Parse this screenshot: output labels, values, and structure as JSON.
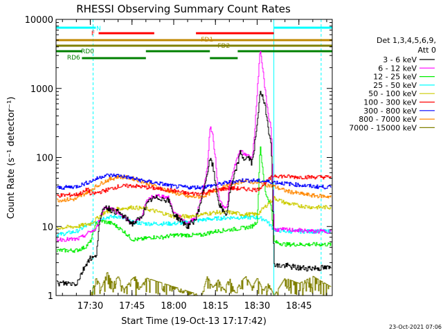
{
  "chart_data": {
    "type": "line",
    "title": "RHESSI Observing Summary Count Rates",
    "xlabel": "Start Time (19-Oct-13 17:17:42)",
    "ylabel": "Count Rate (s⁻¹ detector⁻¹)",
    "y_scale": "log",
    "ylim": [
      1,
      10000
    ],
    "xlim": [
      "17:17:42",
      "18:57:00"
    ],
    "x_ticks": [
      "17:30",
      "17:45",
      "18:00",
      "18:15",
      "18:30",
      "18:45"
    ],
    "y_ticks": [
      "1",
      "10",
      "100",
      "1000",
      "10000"
    ],
    "legend_header": [
      "Det 1,3,4,5,6,9,",
      "Att 0"
    ],
    "timestamp": "23-Oct-2021 07:06",
    "series": [
      {
        "name": "3 - 6 keV",
        "color": "#000000",
        "x": [
          "17:17:42",
          "17:25",
          "17:27",
          "17:29",
          "17:30",
          "17:31",
          "17:32",
          "17:33",
          "17:35",
          "17:38",
          "17:40",
          "17:45",
          "17:48",
          "17:50",
          "17:52",
          "17:55",
          "17:58",
          "18:00",
          "18:05",
          "18:08",
          "18:10",
          "18:12",
          "18:13",
          "18:14",
          "18:15",
          "18:16",
          "18:17",
          "18:19",
          "18:20",
          "18:22",
          "18:24",
          "18:25",
          "18:27",
          "18:28",
          "18:29",
          "18:30",
          "18:31",
          "18:32",
          "18:33",
          "18:34",
          "18:35",
          "18:36",
          "18:37",
          "18:40",
          "18:45",
          "18:50",
          "18:57"
        ],
        "values": [
          1.5,
          1.5,
          2.2,
          3.2,
          3.5,
          3.5,
          3.6,
          10,
          20,
          17,
          16,
          11,
          13,
          20,
          25,
          26,
          24,
          15,
          10,
          13,
          26,
          60,
          95,
          75,
          40,
          23,
          18,
          15,
          30,
          60,
          120,
          95,
          100,
          80,
          150,
          300,
          1000,
          700,
          500,
          250,
          170,
          3,
          2.7,
          2.7,
          2.5,
          2.5,
          2.5
        ]
      },
      {
        "name": "6 - 12 keV",
        "color": "#ff00ff",
        "x": [
          "17:17:42",
          "17:25",
          "17:27",
          "17:30",
          "17:31",
          "17:32",
          "17:33",
          "17:35",
          "17:38",
          "17:40",
          "17:45",
          "17:48",
          "17:50",
          "17:52",
          "17:55",
          "17:58",
          "18:00",
          "18:05",
          "18:08",
          "18:10",
          "18:12",
          "18:13",
          "18:14",
          "18:15",
          "18:16",
          "18:17",
          "18:19",
          "18:20",
          "18:22",
          "18:24",
          "18:25",
          "18:27",
          "18:28",
          "18:29",
          "18:30",
          "18:31",
          "18:32",
          "18:33",
          "18:34",
          "18:35",
          "18:36",
          "18:40",
          "18:45",
          "18:50",
          "18:57"
        ],
        "values": [
          6.5,
          6.5,
          7,
          8.5,
          8.7,
          9,
          12,
          19,
          18,
          16,
          11,
          13,
          22,
          27,
          28,
          26,
          16,
          11,
          14,
          28,
          70,
          290,
          200,
          90,
          28,
          22,
          18,
          38,
          80,
          130,
          110,
          110,
          90,
          220,
          1000,
          3500,
          1800,
          800,
          400,
          260,
          9,
          9,
          8.8,
          8.5,
          8.5
        ]
      },
      {
        "name": "12 - 25 keV",
        "color": "#00ee00",
        "x": [
          "17:17:42",
          "17:25",
          "17:28",
          "17:30",
          "17:32",
          "17:34",
          "17:38",
          "17:42",
          "17:45",
          "17:48",
          "17:52",
          "17:56",
          "18:00",
          "18:05",
          "18:10",
          "18:12",
          "18:15",
          "18:20",
          "18:25",
          "18:28",
          "18:30",
          "18:31",
          "18:32",
          "18:33",
          "18:35",
          "18:36",
          "18:40",
          "18:45",
          "18:50",
          "18:57"
        ],
        "values": [
          4.5,
          4.5,
          5,
          6,
          11,
          12,
          11,
          8.5,
          6.5,
          6.5,
          7,
          7,
          7.5,
          7.5,
          7.5,
          8,
          8.5,
          9,
          9.5,
          10,
          12,
          160,
          60,
          30,
          20,
          6,
          5.5,
          5.5,
          5.5,
          5.5
        ]
      },
      {
        "name": "25 - 50 keV",
        "color": "#00ffff",
        "x": [
          "17:17:42",
          "17:25",
          "17:30",
          "17:35",
          "17:40",
          "17:45",
          "17:50",
          "17:55",
          "18:00",
          "18:05",
          "18:10",
          "18:15",
          "18:20",
          "18:25",
          "18:30",
          "18:33",
          "18:36",
          "18:40",
          "18:45",
          "18:50",
          "18:57"
        ],
        "values": [
          7.5,
          8.5,
          11,
          13.5,
          14,
          11.5,
          11,
          11,
          11,
          11.5,
          12.5,
          13,
          13.5,
          13.5,
          13.5,
          12.5,
          9,
          8.5,
          8.5,
          8.5,
          8.5
        ]
      },
      {
        "name": "50 - 100 keV",
        "color": "#cccc00",
        "x": [
          "17:17:42",
          "17:25",
          "17:30",
          "17:35",
          "17:40",
          "17:45",
          "17:50",
          "17:55",
          "18:00",
          "18:05",
          "18:10",
          "18:15",
          "18:20",
          "18:25",
          "18:30",
          "18:36",
          "18:40",
          "18:45",
          "18:50",
          "18:57"
        ],
        "values": [
          9.5,
          10,
          11,
          16,
          18,
          19,
          18,
          16,
          14,
          14,
          15,
          16,
          16,
          15,
          15,
          26,
          22,
          20,
          19,
          19
        ]
      },
      {
        "name": "100 - 300 keV",
        "color": "#ff0000",
        "x": [
          "17:17:42",
          "17:25",
          "17:28",
          "17:29",
          "17:30",
          "17:35",
          "17:40",
          "17:45",
          "17:50",
          "17:55",
          "18:00",
          "18:05",
          "18:10",
          "18:15",
          "18:20",
          "18:25",
          "18:30",
          "18:36",
          "18:40",
          "18:45",
          "18:50",
          "18:57"
        ],
        "values": [
          28,
          29,
          32,
          36,
          29,
          33,
          38,
          39,
          37,
          35,
          33,
          30,
          30,
          34,
          36,
          35,
          34,
          55,
          53,
          52,
          52,
          52
        ]
      },
      {
        "name": "300 - 800 keV",
        "color": "#0000ff",
        "x": [
          "17:17:42",
          "17:25",
          "17:30",
          "17:35",
          "17:40",
          "17:45",
          "17:50",
          "17:55",
          "18:00",
          "18:05",
          "18:10",
          "18:15",
          "18:20",
          "18:25",
          "18:30",
          "18:36",
          "18:40",
          "18:45",
          "18:50",
          "18:57"
        ],
        "values": [
          36,
          38,
          45,
          55,
          55,
          50,
          45,
          42,
          38,
          37,
          37,
          40,
          44,
          47,
          46,
          44,
          42,
          40,
          38,
          37
        ]
      },
      {
        "name": "800 - 7000 keV",
        "color": "#ff8800",
        "x": [
          "17:17:42",
          "17:25",
          "17:30",
          "17:35",
          "17:40",
          "17:45",
          "17:50",
          "17:55",
          "18:00",
          "18:05",
          "18:10",
          "18:15",
          "18:20",
          "18:25",
          "18:30",
          "18:36",
          "18:40",
          "18:45",
          "18:50",
          "18:57"
        ],
        "values": [
          24,
          25,
          34,
          45,
          53,
          50,
          43,
          36,
          31,
          27,
          27,
          33,
          40,
          46,
          43,
          38,
          33,
          30,
          28,
          27
        ]
      },
      {
        "name": "7000 - 15000 keV",
        "color": "#808000",
        "x": [
          "17:17:42",
          "17:25",
          "17:30",
          "17:32",
          "17:34",
          "17:36",
          "17:38",
          "17:40",
          "17:42",
          "17:44",
          "17:46",
          "17:48",
          "17:50",
          "18:10",
          "18:12",
          "18:14",
          "18:16",
          "18:18",
          "18:20",
          "18:22",
          "18:24",
          "18:26",
          "18:28",
          "18:30",
          "18:32",
          "18:34",
          "18:36",
          "18:40",
          "18:45",
          "18:50",
          "18:57"
        ],
        "values": [
          1,
          1,
          1,
          1.8,
          1.3,
          2.2,
          1.5,
          1.9,
          1.2,
          1.6,
          1.9,
          1.3,
          1.8,
          1,
          1.9,
          1.3,
          1.7,
          1.2,
          1.8,
          1.1,
          1.6,
          1.9,
          1.3,
          1.8,
          1.2,
          1.5,
          1,
          1.8,
          1.5,
          1.9,
          1.3
        ]
      }
    ],
    "status_bars": [
      {
        "label": "N",
        "color": "#00ffff",
        "segments": [
          [
            "17:17:42",
            "17:32"
          ],
          [
            "18:36",
            "18:57"
          ]
        ]
      },
      {
        "label": "F",
        "color": "#ff0000",
        "segments": [
          [
            "17:33",
            "17:53"
          ],
          [
            "18:08",
            "18:36"
          ]
        ]
      },
      {
        "label": "FD1",
        "color": "#c08800",
        "segments": [
          [
            "17:17:42",
            "18:57"
          ]
        ]
      },
      {
        "label": "FD2",
        "color": "#808000",
        "segments": [
          [
            "17:17:42",
            "18:57"
          ]
        ]
      },
      {
        "label": "RD0",
        "color": "#008000",
        "segments": [
          [
            "17:17:42",
            "17:27"
          ],
          [
            "17:50",
            "18:13"
          ],
          [
            "18:23",
            "18:57"
          ]
        ]
      },
      {
        "label": "RD6",
        "color": "#008000",
        "segments": [
          [
            "17:27",
            "17:50"
          ],
          [
            "18:13",
            "18:23"
          ]
        ]
      }
    ],
    "markers": [
      {
        "time": "17:17:42",
        "color": "#00ffff",
        "style": "solid"
      },
      {
        "time": "17:31",
        "color": "#00ffff",
        "style": "dashed"
      },
      {
        "time": "18:36",
        "color": "#00ffff",
        "style": "solid"
      },
      {
        "time": "18:53",
        "color": "#00ffff",
        "style": "dashed"
      }
    ]
  }
}
